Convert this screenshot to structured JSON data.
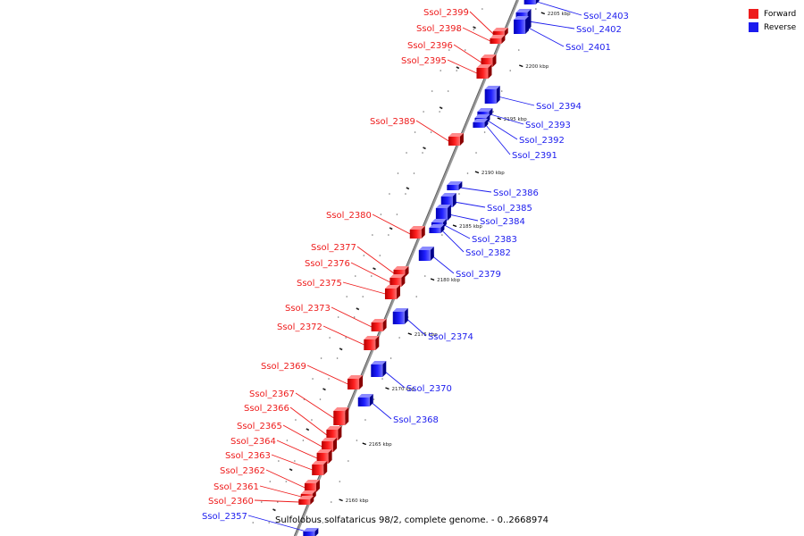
{
  "caption": "Sulfolobus solfataricus 98/2, complete genome. - 0..2668974",
  "colors": {
    "forward": "#ee1c1c",
    "reverse": "#1c1cee",
    "backbone": "#999999"
  },
  "legend": [
    {
      "label": "Forward",
      "color": "#ee1c1c"
    },
    {
      "label": "Reverse",
      "color": "#1c1cee"
    }
  ],
  "ticks": [
    "2160 kbp",
    "2165 kbp",
    "2170 kbp",
    "2175 kbp",
    "2180 kbp",
    "2185 kbp",
    "2190 kbp",
    "2195 kbp",
    "2200 kbp",
    "2205 kbp"
  ],
  "forward_genes": [
    "Ssol_2399",
    "Ssol_2398",
    "Ssol_2396",
    "Ssol_2395",
    "Ssol_2389",
    "Ssol_2380",
    "Ssol_2377",
    "Ssol_2376",
    "Ssol_2375",
    "Ssol_2373",
    "Ssol_2372",
    "Ssol_2369",
    "Ssol_2367",
    "Ssol_2366",
    "Ssol_2365",
    "Ssol_2364",
    "Ssol_2363",
    "Ssol_2362",
    "Ssol_2361",
    "Ssol_2360"
  ],
  "reverse_genes": [
    "Ssol_2403",
    "Ssol_2402",
    "Ssol_2401",
    "Ssol_2394",
    "Ssol_2393",
    "Ssol_2392",
    "Ssol_2391",
    "Ssol_2386",
    "Ssol_2385",
    "Ssol_2384",
    "Ssol_2383",
    "Ssol_2382",
    "Ssol_2379",
    "Ssol_2374",
    "Ssol_2370",
    "Ssol_2368",
    "Ssol_2357"
  ]
}
